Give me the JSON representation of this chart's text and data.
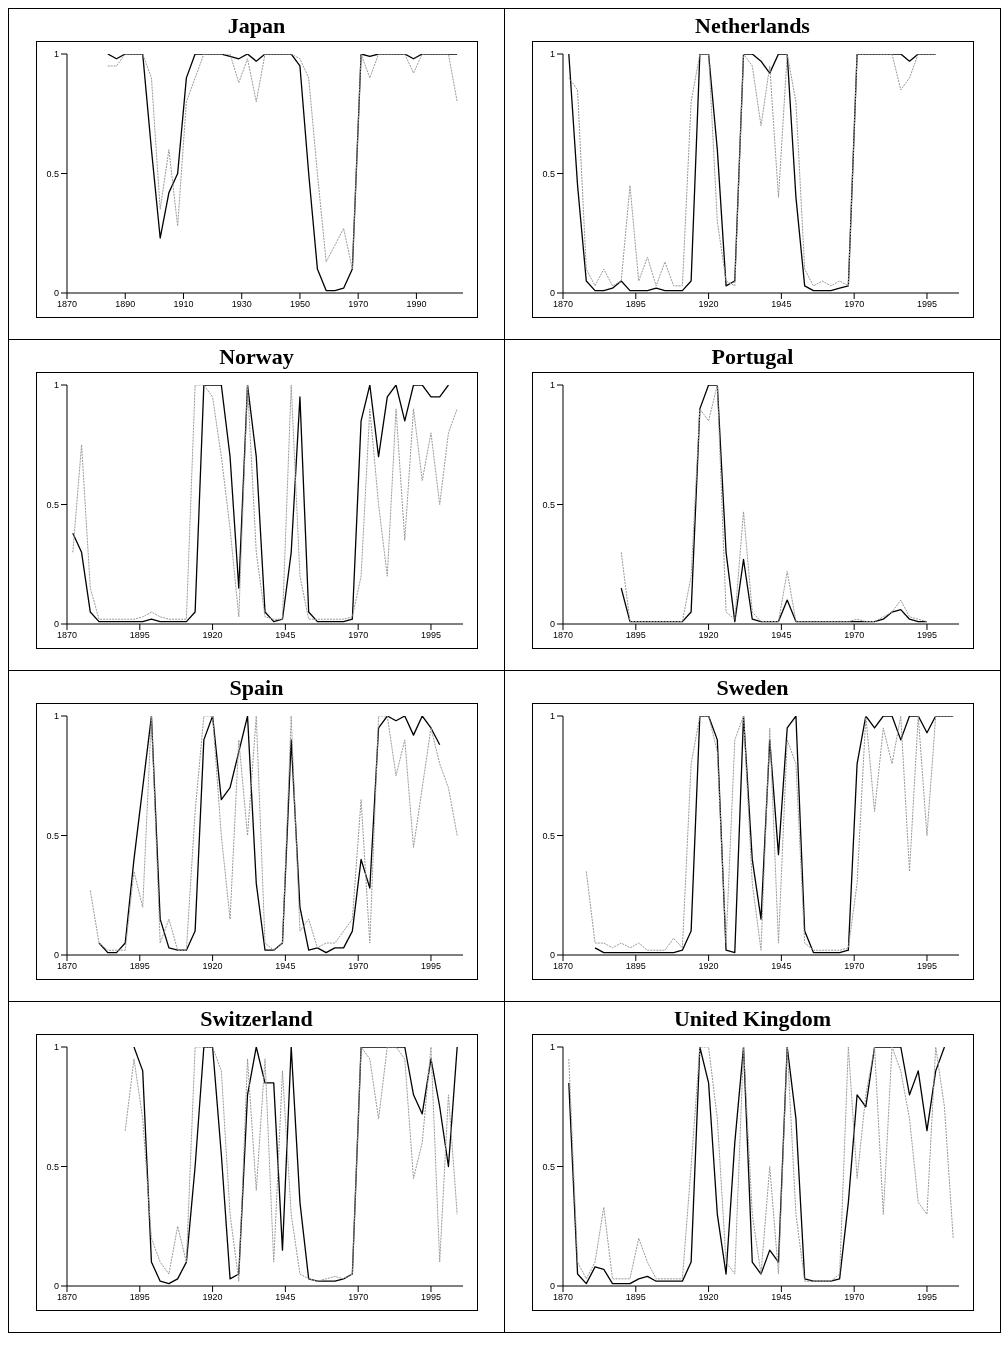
{
  "chart_data": [
    {
      "type": "line",
      "title": "Japan",
      "x": [
        1884,
        1887,
        1890,
        1893,
        1896,
        1899,
        1902,
        1905,
        1908,
        1911,
        1914,
        1917,
        1920,
        1923,
        1926,
        1929,
        1932,
        1935,
        1938,
        1941,
        1944,
        1947,
        1950,
        1953,
        1956,
        1959,
        1962,
        1965,
        1968,
        1971,
        1974,
        1977,
        1980,
        1983,
        1986,
        1989,
        1992,
        1995,
        1998,
        2001,
        2004
      ],
      "xlim": [
        1870,
        2006
      ],
      "xticks": [
        1870,
        1890,
        1910,
        1930,
        1950,
        1970,
        1990
      ],
      "ylim": [
        0,
        1
      ],
      "yticks": [
        0,
        0.5,
        1
      ],
      "series": [
        {
          "color": "#000000",
          "line_style": "solid",
          "values": [
            1,
            0.98,
            1,
            1,
            1,
            0.6,
            0.23,
            0.42,
            0.5,
            0.9,
            1,
            1,
            1,
            1,
            0.99,
            0.98,
            1,
            0.97,
            1,
            1,
            1,
            1,
            0.95,
            0.5,
            0.1,
            0.01,
            0.01,
            0.02,
            0.1,
            1,
            0.99,
            1,
            1,
            1,
            1,
            0.98,
            1,
            1,
            1,
            1,
            1
          ]
        },
        {
          "color": "#999999",
          "line_style": "dotted",
          "values": [
            0.95,
            0.95,
            1,
            1,
            1,
            0.9,
            0.35,
            0.6,
            0.28,
            0.8,
            0.9,
            1,
            1,
            1,
            1,
            0.88,
            0.98,
            0.8,
            1,
            1,
            1,
            1,
            0.98,
            0.9,
            0.5,
            0.13,
            0.2,
            0.27,
            0.1,
            1,
            0.9,
            1,
            1,
            1,
            1,
            0.92,
            1,
            1,
            1,
            1,
            0.8
          ]
        }
      ]
    },
    {
      "type": "line",
      "title": "Netherlands",
      "x": [
        1872,
        1875,
        1878,
        1881,
        1884,
        1887,
        1890,
        1893,
        1896,
        1899,
        1902,
        1905,
        1908,
        1911,
        1914,
        1917,
        1920,
        1923,
        1926,
        1929,
        1932,
        1935,
        1938,
        1941,
        1944,
        1947,
        1950,
        1953,
        1956,
        1959,
        1962,
        1965,
        1968,
        1971,
        1974,
        1977,
        1980,
        1983,
        1986,
        1989,
        1992,
        1995,
        1998
      ],
      "xlim": [
        1870,
        2006
      ],
      "xticks": [
        1870,
        1895,
        1920,
        1945,
        1970,
        1995
      ],
      "ylim": [
        0,
        1
      ],
      "yticks": [
        0,
        0.5,
        1
      ],
      "series": [
        {
          "color": "#000000",
          "line_style": "solid",
          "values": [
            1,
            0.45,
            0.05,
            0.01,
            0.01,
            0.02,
            0.05,
            0.01,
            0.01,
            0.01,
            0.02,
            0.01,
            0.01,
            0.01,
            0.05,
            1,
            1,
            0.6,
            0.03,
            0.05,
            1,
            1,
            0.97,
            0.92,
            1,
            1,
            0.4,
            0.03,
            0.01,
            0.01,
            0.01,
            0.02,
            0.03,
            1,
            1,
            1,
            1,
            1,
            1,
            0.97,
            1,
            1,
            1
          ]
        },
        {
          "color": "#999999",
          "line_style": "dotted",
          "values": [
            0.9,
            0.85,
            0.1,
            0.03,
            0.1,
            0.03,
            0.05,
            0.45,
            0.05,
            0.15,
            0.03,
            0.13,
            0.03,
            0.03,
            0.8,
            1,
            1,
            0.3,
            0.05,
            0.03,
            1,
            0.95,
            0.7,
            0.95,
            0.4,
            1,
            0.8,
            0.1,
            0.03,
            0.05,
            0.03,
            0.05,
            0.03,
            1,
            1,
            1,
            1,
            1,
            0.85,
            0.9,
            1,
            1,
            1
          ]
        }
      ]
    },
    {
      "type": "line",
      "title": "Norway",
      "x": [
        1872,
        1875,
        1878,
        1881,
        1884,
        1887,
        1890,
        1893,
        1896,
        1899,
        1902,
        1905,
        1908,
        1911,
        1914,
        1917,
        1920,
        1923,
        1926,
        1929,
        1932,
        1935,
        1938,
        1941,
        1944,
        1947,
        1950,
        1953,
        1956,
        1959,
        1962,
        1965,
        1968,
        1971,
        1974,
        1977,
        1980,
        1983,
        1986,
        1989,
        1992,
        1995,
        1998,
        2001,
        2004
      ],
      "xlim": [
        1870,
        2006
      ],
      "xticks": [
        1870,
        1895,
        1920,
        1945,
        1970,
        1995
      ],
      "ylim": [
        0,
        1
      ],
      "yticks": [
        0,
        0.5,
        1
      ],
      "series": [
        {
          "color": "#000000",
          "line_style": "solid",
          "values": [
            0.38,
            0.3,
            0.05,
            0.01,
            0.01,
            0.01,
            0.01,
            0.01,
            0.01,
            0.02,
            0.01,
            0.01,
            0.01,
            0.01,
            0.05,
            1,
            1,
            1,
            0.7,
            0.15,
            1,
            0.7,
            0.05,
            0.01,
            0.02,
            0.3,
            0.95,
            0.05,
            0.01,
            0.01,
            0.01,
            0.01,
            0.02,
            0.85,
            1,
            0.7,
            0.95,
            1,
            0.85,
            1,
            1,
            0.95,
            0.95,
            1,
            null
          ]
        },
        {
          "color": "#999999",
          "line_style": "dotted",
          "values": [
            0.3,
            0.75,
            0.15,
            0.02,
            0.02,
            0.02,
            0.02,
            0.02,
            0.03,
            0.05,
            0.03,
            0.02,
            0.02,
            0.02,
            1,
            1,
            0.95,
            0.7,
            0.4,
            0.03,
            1,
            0.3,
            0.03,
            0.02,
            0.02,
            1,
            0.2,
            0.02,
            0.02,
            0.02,
            0.02,
            0.02,
            0.03,
            0.2,
            0.9,
            0.5,
            0.2,
            0.9,
            0.35,
            0.9,
            0.6,
            0.8,
            0.5,
            0.8,
            0.9
          ]
        }
      ]
    },
    {
      "type": "line",
      "title": "Portugal",
      "x": [
        1890,
        1893,
        1896,
        1899,
        1902,
        1905,
        1908,
        1911,
        1914,
        1917,
        1920,
        1923,
        1926,
        1929,
        1932,
        1935,
        1938,
        1941,
        1944,
        1947,
        1950,
        1953,
        1956,
        1959,
        1962,
        1965,
        1968,
        1971,
        1974,
        1977,
        1980,
        1983,
        1986,
        1989,
        1992,
        1995
      ],
      "xlim": [
        1870,
        2006
      ],
      "xticks": [
        1870,
        1895,
        1920,
        1945,
        1970,
        1995
      ],
      "ylim": [
        0,
        1
      ],
      "yticks": [
        0,
        0.5,
        1
      ],
      "series": [
        {
          "color": "#000000",
          "line_style": "solid",
          "values": [
            0.15,
            0.01,
            0.01,
            0.01,
            0.01,
            0.01,
            0.01,
            0.01,
            0.05,
            0.9,
            1,
            1,
            0.3,
            0.01,
            0.27,
            0.02,
            0.01,
            0.01,
            0.01,
            0.1,
            0.01,
            0.01,
            0.01,
            0.01,
            0.01,
            0.01,
            0.01,
            0.01,
            0.01,
            0.01,
            0.02,
            0.05,
            0.06,
            0.02,
            0.01,
            0.01
          ]
        },
        {
          "color": "#999999",
          "line_style": "dotted",
          "values": [
            0.3,
            0.01,
            0.01,
            0.01,
            0.01,
            0.01,
            0.01,
            0.01,
            0.2,
            0.9,
            0.85,
            1,
            0.05,
            0.02,
            0.47,
            0.05,
            0.01,
            0.01,
            0.01,
            0.22,
            0.01,
            0.01,
            0.01,
            0.01,
            0.01,
            0.01,
            0.01,
            0.02,
            0.01,
            0.01,
            0.03,
            0.05,
            0.1,
            0.03,
            0.02,
            0.01
          ]
        }
      ]
    },
    {
      "type": "line",
      "title": "Spain",
      "x": [
        1878,
        1881,
        1884,
        1887,
        1890,
        1893,
        1896,
        1899,
        1902,
        1905,
        1908,
        1911,
        1914,
        1917,
        1920,
        1923,
        1926,
        1929,
        1932,
        1935,
        1938,
        1941,
        1944,
        1947,
        1950,
        1953,
        1956,
        1959,
        1962,
        1965,
        1968,
        1971,
        1974,
        1977,
        1980,
        1983,
        1986,
        1989,
        1992,
        1995,
        1998,
        2001,
        2004
      ],
      "xlim": [
        1870,
        2006
      ],
      "xticks": [
        1870,
        1895,
        1920,
        1945,
        1970,
        1995
      ],
      "ylim": [
        0,
        1
      ],
      "yticks": [
        0,
        0.5,
        1
      ],
      "series": [
        {
          "color": "#000000",
          "line_style": "solid",
          "values": [
            null,
            0.05,
            0.01,
            0.01,
            0.05,
            0.4,
            0.7,
            1,
            0.15,
            0.03,
            0.02,
            0.02,
            0.1,
            0.9,
            1,
            0.65,
            0.7,
            0.85,
            1,
            0.3,
            0.02,
            0.02,
            0.05,
            0.9,
            0.2,
            0.02,
            0.03,
            0.01,
            0.03,
            0.03,
            0.1,
            0.4,
            0.28,
            0.95,
            1,
            0.98,
            1,
            0.92,
            1,
            0.95,
            0.88,
            null,
            null
          ]
        },
        {
          "color": "#999999",
          "line_style": "dotted",
          "values": [
            0.27,
            0.05,
            0.02,
            0.02,
            0.02,
            0.35,
            0.2,
            1,
            0.05,
            0.15,
            0.02,
            0.02,
            0.6,
            1,
            1,
            0.5,
            0.15,
            0.9,
            0.5,
            1,
            0.05,
            0.02,
            0.05,
            1,
            0.1,
            0.15,
            0.03,
            0.05,
            0.05,
            0.1,
            0.15,
            0.65,
            0.05,
            1,
            1,
            0.75,
            0.9,
            0.45,
            0.7,
            0.95,
            0.8,
            0.7,
            0.5
          ]
        }
      ]
    },
    {
      "type": "line",
      "title": "Sweden",
      "x": [
        1878,
        1881,
        1884,
        1887,
        1890,
        1893,
        1896,
        1899,
        1902,
        1905,
        1908,
        1911,
        1914,
        1917,
        1920,
        1923,
        1926,
        1929,
        1932,
        1935,
        1938,
        1941,
        1944,
        1947,
        1950,
        1953,
        1956,
        1959,
        1962,
        1965,
        1968,
        1971,
        1974,
        1977,
        1980,
        1983,
        1986,
        1989,
        1992,
        1995,
        1998,
        2001,
        2004
      ],
      "xlim": [
        1870,
        2006
      ],
      "xticks": [
        1870,
        1895,
        1920,
        1945,
        1970,
        1995
      ],
      "ylim": [
        0,
        1
      ],
      "yticks": [
        0,
        0.5,
        1
      ],
      "series": [
        {
          "color": "#000000",
          "line_style": "solid",
          "values": [
            null,
            0.03,
            0.01,
            0.01,
            0.01,
            0.01,
            0.01,
            0.01,
            0.01,
            0.01,
            0.01,
            0.02,
            0.1,
            1,
            1,
            0.9,
            0.02,
            0.01,
            1,
            0.4,
            0.15,
            0.9,
            0.42,
            0.95,
            1,
            0.1,
            0.01,
            0.01,
            0.01,
            0.01,
            0.02,
            0.8,
            1,
            0.95,
            1,
            1,
            0.9,
            1,
            1,
            0.93,
            1,
            1,
            1
          ]
        },
        {
          "color": "#999999",
          "line_style": "dotted",
          "values": [
            0.35,
            0.05,
            0.05,
            0.03,
            0.05,
            0.03,
            0.05,
            0.02,
            0.02,
            0.02,
            0.07,
            0.03,
            0.8,
            1,
            1,
            0.85,
            0.05,
            0.9,
            1,
            0.3,
            0.02,
            0.95,
            0.05,
            0.9,
            0.8,
            0.05,
            0.02,
            0.02,
            0.02,
            0.02,
            0.03,
            0.3,
            1,
            0.6,
            0.95,
            0.8,
            1,
            0.35,
            1,
            0.5,
            1,
            1,
            1
          ]
        }
      ]
    },
    {
      "type": "line",
      "title": "Switzerland",
      "x": [
        1890,
        1893,
        1896,
        1899,
        1902,
        1905,
        1908,
        1911,
        1914,
        1917,
        1920,
        1923,
        1926,
        1929,
        1932,
        1935,
        1938,
        1941,
        1944,
        1947,
        1950,
        1953,
        1956,
        1959,
        1962,
        1965,
        1968,
        1971,
        1974,
        1977,
        1980,
        1983,
        1986,
        1989,
        1992,
        1995,
        1998,
        2001,
        2004
      ],
      "xlim": [
        1870,
        2006
      ],
      "xticks": [
        1870,
        1895,
        1920,
        1945,
        1970,
        1995
      ],
      "ylim": [
        0,
        1
      ],
      "yticks": [
        0,
        0.5,
        1
      ],
      "series": [
        {
          "color": "#000000",
          "line_style": "solid",
          "values": [
            null,
            1,
            0.9,
            0.1,
            0.02,
            0.01,
            0.03,
            0.1,
            0.5,
            1,
            1,
            0.55,
            0.03,
            0.05,
            0.8,
            1,
            0.85,
            0.85,
            0.15,
            1,
            0.35,
            0.03,
            0.02,
            0.02,
            0.02,
            0.03,
            0.05,
            1,
            1,
            1,
            1,
            1,
            1,
            0.8,
            0.72,
            0.95,
            0.75,
            0.5,
            1
          ]
        },
        {
          "color": "#999999",
          "line_style": "dotted",
          "values": [
            0.65,
            0.95,
            0.7,
            0.2,
            0.1,
            0.05,
            0.25,
            0.1,
            1,
            1,
            1,
            0.9,
            0.3,
            0.02,
            0.95,
            0.4,
            0.95,
            0.1,
            0.9,
            0.3,
            0.05,
            0.03,
            0.02,
            0.03,
            0.04,
            0.03,
            0.05,
            1,
            0.95,
            0.7,
            1,
            1,
            0.95,
            0.45,
            0.6,
            1,
            0.1,
            0.8,
            0.3
          ]
        }
      ]
    },
    {
      "type": "line",
      "title": "United Kingdom",
      "x": [
        1872,
        1875,
        1878,
        1881,
        1884,
        1887,
        1890,
        1893,
        1896,
        1899,
        1902,
        1905,
        1908,
        1911,
        1914,
        1917,
        1920,
        1923,
        1926,
        1929,
        1932,
        1935,
        1938,
        1941,
        1944,
        1947,
        1950,
        1953,
        1956,
        1959,
        1962,
        1965,
        1968,
        1971,
        1974,
        1977,
        1980,
        1983,
        1986,
        1989,
        1992,
        1995,
        1998,
        2001,
        2004
      ],
      "xlim": [
        1870,
        2006
      ],
      "xticks": [
        1870,
        1895,
        1920,
        1945,
        1970,
        1995
      ],
      "ylim": [
        0,
        1
      ],
      "yticks": [
        0,
        0.5,
        1
      ],
      "series": [
        {
          "color": "#000000",
          "line_style": "solid",
          "values": [
            0.85,
            0.05,
            0.01,
            0.08,
            0.07,
            0.01,
            0.01,
            0.01,
            0.03,
            0.04,
            0.02,
            0.02,
            0.02,
            0.02,
            0.1,
            1,
            0.85,
            0.3,
            0.05,
            0.6,
            1,
            0.1,
            0.05,
            0.15,
            0.1,
            1,
            0.7,
            0.03,
            0.02,
            0.02,
            0.02,
            0.03,
            0.35,
            0.8,
            0.75,
            1,
            1,
            1,
            1,
            0.8,
            0.9,
            0.65,
            0.9,
            1,
            null
          ]
        },
        {
          "color": "#999999",
          "line_style": "dotted",
          "values": [
            0.95,
            0.1,
            0.03,
            0.1,
            0.33,
            0.03,
            0.03,
            0.03,
            0.2,
            0.1,
            0.03,
            0.03,
            0.03,
            0.03,
            0.5,
            1,
            1,
            0.7,
            0.1,
            0.05,
            1,
            0.3,
            0.05,
            0.5,
            0.05,
            1,
            0.3,
            0.02,
            0.02,
            0.02,
            0.02,
            0.05,
            1,
            0.45,
            0.8,
            1,
            0.3,
            1,
            0.9,
            0.7,
            0.35,
            0.3,
            1,
            0.75,
            0.2
          ]
        }
      ]
    }
  ]
}
